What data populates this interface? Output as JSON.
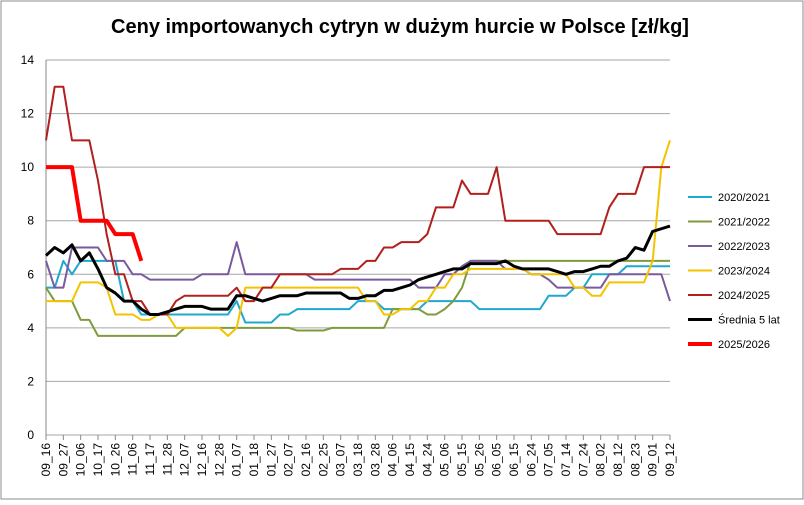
{
  "chart_data": {
    "type": "line",
    "title": "Ceny importowanych cytryn w dużym hurcie w Polsce [zł/kg]",
    "categories": [
      "09_16",
      null,
      "09_27",
      null,
      "10_06",
      null,
      "10_17",
      null,
      "10_26",
      null,
      "11_06",
      null,
      "11_17",
      null,
      "11_28",
      null,
      "12_07",
      null,
      "12_16",
      null,
      "12_28",
      null,
      "01_07",
      null,
      "01_18",
      null,
      "01_27",
      null,
      "02_07",
      null,
      "02_16",
      null,
      "02_25",
      null,
      "03_07",
      null,
      "03_18",
      null,
      "03_28",
      null,
      "04_06",
      null,
      "04_15",
      null,
      "04_24",
      null,
      "05_06",
      null,
      "05_15",
      null,
      "05_26",
      null,
      "06_05",
      null,
      "06_15",
      null,
      "06_24",
      null,
      "07_05",
      null,
      "07_14",
      null,
      "07_24",
      null,
      "08_02",
      null,
      "08_12",
      null,
      "08_23",
      null,
      "09_01",
      null,
      "09_12"
    ],
    "ylim": [
      0,
      14
    ],
    "yticks": [
      0,
      2,
      4,
      6,
      8,
      10,
      12,
      14
    ],
    "grid": true,
    "legend": "right",
    "series": [
      {
        "name": "2020/2021",
        "color": "#1fa8cf",
        "width": 2,
        "values": [
          5.5,
          5.5,
          6.5,
          6,
          6.5,
          6.5,
          6.5,
          6.5,
          6.5,
          5,
          5,
          4.5,
          4.5,
          4.5,
          4.5,
          4.5,
          4.5,
          4.5,
          4.5,
          4.5,
          4.5,
          4.5,
          5,
          4.2,
          4.2,
          4.2,
          4.2,
          4.5,
          4.5,
          4.7,
          4.7,
          4.7,
          4.7,
          4.7,
          4.7,
          4.7,
          5,
          5,
          5,
          4.7,
          4.7,
          4.7,
          4.7,
          4.7,
          5,
          5,
          5,
          5,
          5,
          5,
          4.7,
          4.7,
          4.7,
          4.7,
          4.7,
          4.7,
          4.7,
          4.7,
          5.2,
          5.2,
          5.2,
          5.5,
          5.5,
          6,
          6,
          6,
          6,
          6.3,
          6.3,
          6.3,
          6.3,
          6.3,
          6.3
        ]
      },
      {
        "name": "2021/2022",
        "color": "#7f9b3c",
        "width": 2,
        "values": [
          5.5,
          5,
          5,
          5,
          4.3,
          4.3,
          3.7,
          3.7,
          3.7,
          3.7,
          3.7,
          3.7,
          3.7,
          3.7,
          3.7,
          3.7,
          4,
          4,
          4,
          4,
          4,
          4,
          4,
          4,
          4,
          4,
          4,
          4,
          4,
          3.9,
          3.9,
          3.9,
          3.9,
          4,
          4,
          4,
          4,
          4,
          4,
          4,
          4.7,
          4.7,
          4.7,
          4.7,
          4.5,
          4.5,
          4.7,
          5,
          5.5,
          6.5,
          6.5,
          6.5,
          6.5,
          6.5,
          6.5,
          6.5,
          6.5,
          6.5,
          6.5,
          6.5,
          6.5,
          6.5,
          6.5,
          6.5,
          6.5,
          6.5,
          6.5,
          6.5,
          6.5,
          6.5,
          6.5,
          6.5,
          6.5
        ]
      },
      {
        "name": "2022/2023",
        "color": "#7a5a9e",
        "width": 2,
        "values": [
          6.5,
          5.5,
          5.5,
          7,
          7,
          7,
          7,
          6.5,
          6.5,
          6.5,
          6,
          6,
          5.8,
          5.8,
          5.8,
          5.8,
          5.8,
          5.8,
          6,
          6,
          6,
          6,
          7.2,
          6,
          6,
          6,
          6,
          6,
          6,
          6,
          6,
          5.8,
          5.8,
          5.8,
          5.8,
          5.8,
          5.8,
          5.8,
          5.8,
          5.8,
          5.8,
          5.8,
          5.8,
          5.5,
          5.5,
          5.5,
          6,
          6,
          6.3,
          6.5,
          6.5,
          6.5,
          6.5,
          6.2,
          6.2,
          6.2,
          6,
          6,
          5.8,
          5.5,
          5.5,
          5.5,
          5.5,
          5.5,
          5.5,
          6,
          6,
          6,
          6,
          6,
          6,
          6,
          5
        ]
      },
      {
        "name": "2023/2024",
        "color": "#f5c200",
        "width": 2,
        "values": [
          5,
          5,
          5,
          5,
          5.7,
          5.7,
          5.7,
          5.5,
          4.5,
          4.5,
          4.5,
          4.3,
          4.3,
          4.5,
          4.5,
          4,
          4,
          4,
          4,
          4,
          4,
          3.7,
          4,
          5.5,
          5.5,
          5.5,
          5.5,
          5.5,
          5.5,
          5.5,
          5.5,
          5.5,
          5.5,
          5.5,
          5.5,
          5.5,
          5.5,
          5,
          5,
          4.5,
          4.5,
          4.7,
          4.7,
          5,
          5,
          5.5,
          5.5,
          6,
          6,
          6.2,
          6.2,
          6.2,
          6.2,
          6.2,
          6.2,
          6.2,
          6,
          6,
          6,
          6,
          6,
          5.5,
          5.5,
          5.2,
          5.2,
          5.7,
          5.7,
          5.7,
          5.7,
          5.7,
          6.5,
          10,
          11
        ]
      },
      {
        "name": "2024/2025",
        "color": "#b0201c",
        "width": 2,
        "values": [
          11,
          13,
          13,
          11,
          11,
          11,
          9.5,
          7.5,
          6,
          6,
          5,
          5,
          4.5,
          4.5,
          4.5,
          5,
          5.2,
          5.2,
          5.2,
          5.2,
          5.2,
          5.2,
          5.5,
          5,
          5,
          5.5,
          5.5,
          6,
          6,
          6,
          6,
          6,
          6,
          6,
          6.2,
          6.2,
          6.2,
          6.5,
          6.5,
          7,
          7,
          7.2,
          7.2,
          7.2,
          7.5,
          8.5,
          8.5,
          8.5,
          9.5,
          9,
          9,
          9,
          10,
          8,
          8,
          8,
          8,
          8,
          8,
          7.5,
          7.5,
          7.5,
          7.5,
          7.5,
          7.5,
          8.5,
          9,
          9,
          9,
          10,
          10,
          10,
          10
        ]
      },
      {
        "name": "Średnia 5 lat",
        "color": "#000000",
        "width": 3,
        "values": [
          6.7,
          7,
          6.8,
          7.1,
          6.5,
          6.8,
          6.2,
          5.5,
          5.3,
          5,
          5,
          4.7,
          4.5,
          4.5,
          4.6,
          4.7,
          4.8,
          4.8,
          4.8,
          4.7,
          4.7,
          4.7,
          5.2,
          5.2,
          5.1,
          5,
          5.1,
          5.2,
          5.2,
          5.2,
          5.3,
          5.3,
          5.3,
          5.3,
          5.3,
          5.1,
          5.1,
          5.2,
          5.2,
          5.4,
          5.4,
          5.5,
          5.6,
          5.8,
          5.9,
          6,
          6.1,
          6.2,
          6.2,
          6.4,
          6.4,
          6.4,
          6.4,
          6.5,
          6.3,
          6.2,
          6.2,
          6.2,
          6.2,
          6.1,
          6,
          6.1,
          6.1,
          6.2,
          6.3,
          6.3,
          6.5,
          6.6,
          7,
          6.9,
          7.6,
          7.7,
          7.8
        ]
      },
      {
        "name": "2025/2026",
        "color": "#ff0000",
        "width": 4,
        "values": [
          10,
          10,
          10,
          10,
          8,
          8,
          8,
          8,
          7.5,
          7.5,
          7.5,
          6.5,
          null,
          null,
          null,
          null,
          null,
          null,
          null,
          null,
          null,
          null,
          null,
          null,
          null,
          null,
          null,
          null,
          null,
          null,
          null,
          null,
          null,
          null,
          null,
          null,
          null,
          null,
          null,
          null,
          null,
          null,
          null,
          null,
          null,
          null,
          null,
          null,
          null,
          null,
          null,
          null,
          null,
          null,
          null,
          null,
          null,
          null,
          null,
          null,
          null,
          null,
          null,
          null,
          null,
          null,
          null,
          null,
          null,
          null,
          null,
          null,
          null
        ]
      }
    ]
  }
}
